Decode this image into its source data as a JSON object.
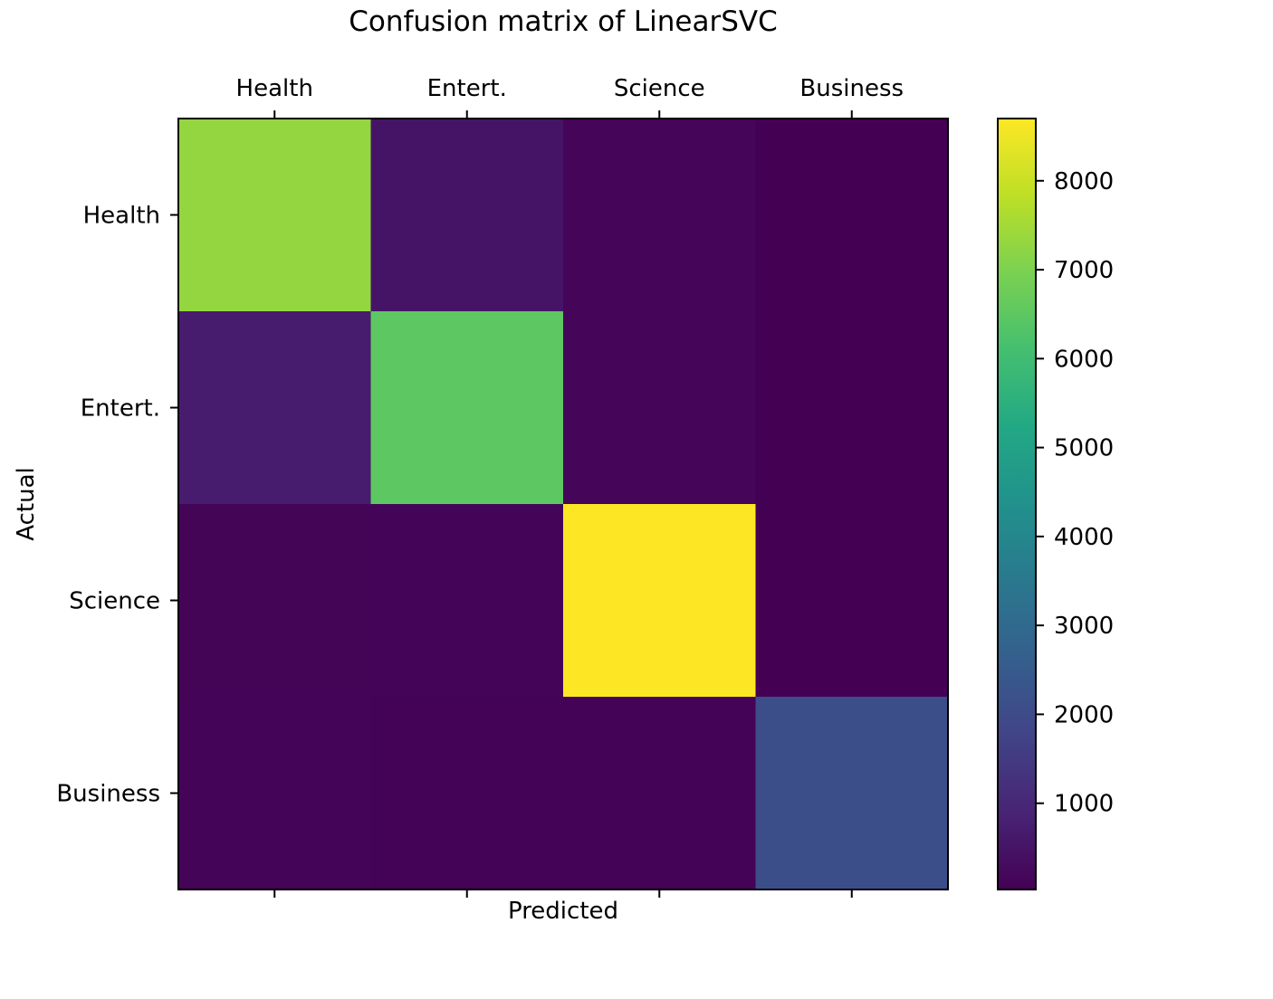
{
  "chart_data": {
    "type": "heatmap",
    "title": "Confusion matrix of LinearSVC",
    "xlabel": "Predicted",
    "ylabel": "Actual",
    "x_categories": [
      "Health",
      "Entert.",
      "Science",
      "Business"
    ],
    "y_categories": [
      "Health",
      "Entert.",
      "Science",
      "Business"
    ],
    "values": [
      [
        7300,
        500,
        140,
        40
      ],
      [
        700,
        6500,
        160,
        30
      ],
      [
        120,
        130,
        8700,
        30
      ],
      [
        100,
        90,
        80,
        2100
      ]
    ],
    "colormap": "viridis",
    "colorbar": {
      "min": 30,
      "max": 8700,
      "ticks": [
        1000,
        2000,
        3000,
        4000,
        5000,
        6000,
        7000,
        8000
      ]
    },
    "x_ticks_position": "top"
  }
}
